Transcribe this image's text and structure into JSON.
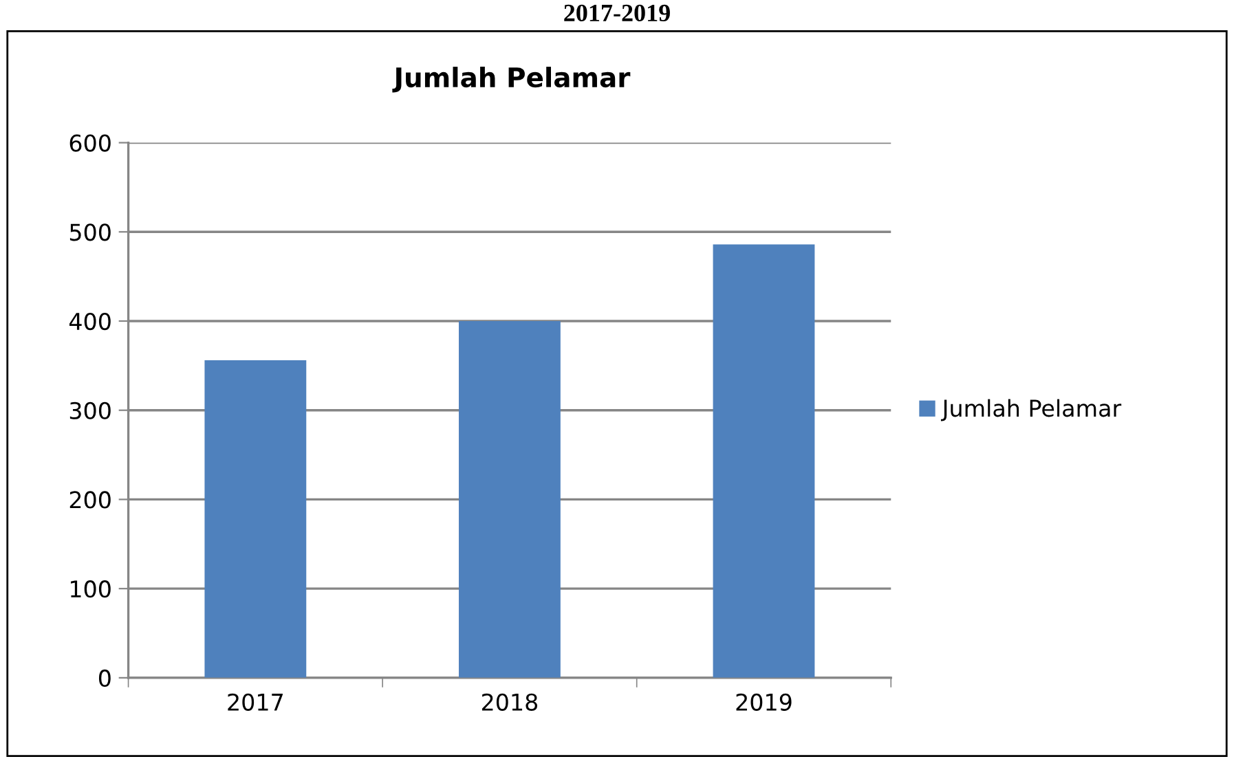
{
  "chart_data": {
    "type": "bar",
    "title": "Jumlah Pelamar",
    "categories": [
      "2017",
      "2018",
      "2019"
    ],
    "series": [
      {
        "name": "Jumlah Pelamar",
        "color": "#4f81bd",
        "values": [
          356,
          400,
          486
        ]
      }
    ],
    "ylim": [
      0,
      600
    ],
    "yticks": [
      0,
      100,
      200,
      300,
      400,
      500,
      600
    ],
    "grid": "y",
    "legend": "right",
    "annotations": [
      "2017-2019"
    ]
  }
}
